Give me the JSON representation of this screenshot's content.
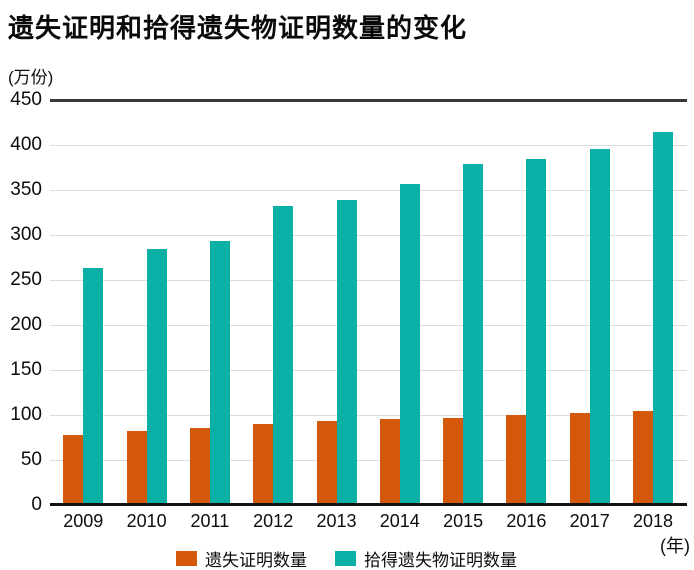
{
  "header": {
    "title": "遗失证明和拾得遗失物证明数量的变化"
  },
  "axes": {
    "y_unit_label": "(万份)",
    "x_unit_label": "(年)"
  },
  "legend": {
    "items": [
      {
        "label": "遗失证明数量",
        "color": "#d3580b"
      },
      {
        "label": "拾得遗失物证明数量",
        "color": "#0ab0a6"
      }
    ]
  },
  "colors": {
    "series_lost": "#d3580b",
    "series_found": "#0ab0a6",
    "gridline": "#dcdcdc",
    "top_frame_line": "#383838",
    "x_axis_line": "#111111",
    "text": "#0d0d0d"
  },
  "chart_data": {
    "type": "bar",
    "title": "遗失证明和拾得遗失物证明数量的变化",
    "xlabel": "(年)",
    "ylabel": "(万份)",
    "categories": [
      "2009",
      "2010",
      "2011",
      "2012",
      "2013",
      "2014",
      "2015",
      "2016",
      "2017",
      "2018"
    ],
    "series": [
      {
        "name": "遗失证明数量",
        "color": "#d3580b",
        "values": [
          78,
          82,
          86,
          90,
          93,
          96,
          97,
          100,
          102,
          105
        ]
      },
      {
        "name": "拾得遗失物证明数量",
        "color": "#0ab0a6",
        "values": [
          263,
          284,
          293,
          332,
          339,
          357,
          379,
          384,
          396,
          414
        ]
      }
    ],
    "ylim": [
      0,
      450
    ],
    "yticks": [
      0,
      50,
      100,
      150,
      200,
      250,
      300,
      350,
      400,
      450
    ],
    "grid": true,
    "legend_position": "bottom-clipped"
  }
}
